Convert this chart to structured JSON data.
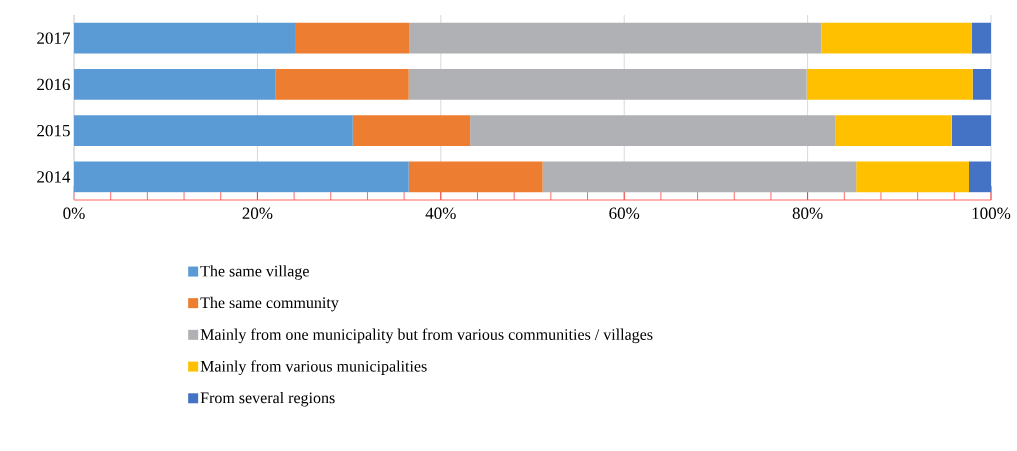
{
  "chart_data": {
    "type": "bar",
    "orientation": "horizontal",
    "stacked": true,
    "categories": [
      "2017",
      "2016",
      "2015",
      "2014"
    ],
    "series": [
      {
        "name": "The same village",
        "color": "#5b9bd5",
        "values": [
          24.2,
          22.0,
          30.4,
          36.5
        ]
      },
      {
        "name": "The same community",
        "color": "#ed7d31",
        "values": [
          12.4,
          14.5,
          12.8,
          14.6
        ]
      },
      {
        "name": "Mainly from one municipality but from various communities / villages",
        "color": "#b0b1b4",
        "values": [
          44.9,
          43.4,
          39.8,
          34.2
        ]
      },
      {
        "name": "Mainly from various municipalities",
        "color": "#ffc000",
        "values": [
          16.4,
          18.1,
          12.7,
          12.3
        ]
      },
      {
        "name": "From several regions",
        "color": "#4472c4",
        "values": [
          2.1,
          2.0,
          4.3,
          2.4
        ]
      }
    ],
    "xlim": [
      0,
      100
    ],
    "xticks": [
      {
        "value": 0,
        "label": "0%"
      },
      {
        "value": 20,
        "label": "20%"
      },
      {
        "value": 40,
        "label": "40%"
      },
      {
        "value": 60,
        "label": "60%"
      },
      {
        "value": 80,
        "label": "80%"
      },
      {
        "value": 100,
        "label": "100%"
      }
    ],
    "grid": "x",
    "legend": "bottom"
  }
}
